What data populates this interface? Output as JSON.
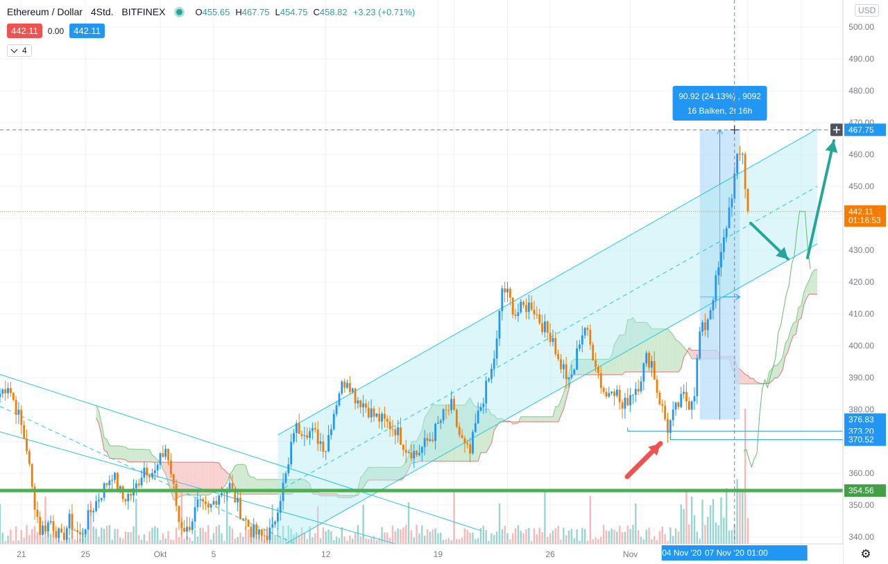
{
  "header": {
    "symbol": "Ethereum / Dollar",
    "interval": "4Std.",
    "exchange": "BITFINEX",
    "o_label": "O",
    "o_value": "455.65",
    "h_label": "H",
    "h_value": "467.75",
    "l_label": "L",
    "l_value": "454.75",
    "c_label": "C",
    "c_value": "458.82",
    "change": "+3.23 (+0.71%)"
  },
  "badges": {
    "bid": "442.11",
    "spread": "0.00",
    "ask": "442.11"
  },
  "indicators_toggle": "4",
  "currency": "USD",
  "measure": {
    "line1": "90.92 (24.13%) , 9092",
    "line2": "16 Balken, 2t 16h"
  },
  "price_tags": [
    {
      "label": "467.75",
      "price": 467.75,
      "color": "#2196f3"
    },
    {
      "label": "442.11",
      "price": 442.11,
      "color": "#f57c00"
    },
    {
      "label": "01:16:53",
      "price": 439.3,
      "color": "#f57c00"
    },
    {
      "label": "376.83",
      "price": 376.83,
      "color": "#2196f3"
    },
    {
      "label": "373.20",
      "price": 373.2,
      "color": "#2196f3"
    },
    {
      "label": "370.52",
      "price": 370.52,
      "color": "#2196f3"
    },
    {
      "label": "354.56",
      "price": 354.56,
      "color": "#43a047"
    }
  ],
  "time_tags": [
    "04 Nov '20",
    "07 Nov '20",
    "01:00"
  ],
  "colors": {
    "up": "#2196f3",
    "down": "#f57c00",
    "channel": "#26c6da",
    "support": "#4caf50",
    "cloud_bear": "#f8c9c9",
    "cloud_bull": "#c8e6c9",
    "arrow_teal": "#26a69a",
    "arrow_red": "#ef5350"
  },
  "chart_data": {
    "type": "candlestick",
    "ylim": [
      338,
      506
    ],
    "y_ticks": [
      340,
      350,
      360,
      370,
      380,
      390,
      400,
      410,
      420,
      430,
      440,
      450,
      460,
      470,
      480,
      490,
      500
    ],
    "y_tick_labels": [
      "340.00",
      "350.00",
      "360.00",
      "370.00",
      "380.00",
      "390.00",
      "400.00",
      "410.00",
      "420.00",
      "430.00",
      "440.00",
      "450.00",
      "460.00",
      "470.00",
      "480.00",
      "490.00",
      "500.00"
    ],
    "x_ticks": [
      {
        "label": "21",
        "bar": 8
      },
      {
        "label": "25",
        "bar": 32
      },
      {
        "label": "Okt",
        "bar": 60
      },
      {
        "label": "5",
        "bar": 80
      },
      {
        "label": "12",
        "bar": 122
      },
      {
        "label": "19",
        "bar": 164
      },
      {
        "label": "26",
        "bar": 206
      },
      {
        "label": "Nov",
        "bar": 236
      }
    ],
    "keypoints": [
      [
        0,
        385
      ],
      [
        3,
        388
      ],
      [
        7,
        378
      ],
      [
        10,
        368
      ],
      [
        12,
        355
      ],
      [
        15,
        342
      ],
      [
        19,
        345
      ],
      [
        23,
        339
      ],
      [
        26,
        345
      ],
      [
        30,
        340
      ],
      [
        34,
        348
      ],
      [
        38,
        354
      ],
      [
        42,
        360
      ],
      [
        46,
        352
      ],
      [
        50,
        354
      ],
      [
        54,
        362
      ],
      [
        58,
        360
      ],
      [
        62,
        368
      ],
      [
        64,
        360
      ],
      [
        67,
        345
      ],
      [
        70,
        342
      ],
      [
        74,
        350
      ],
      [
        78,
        348
      ],
      [
        82,
        354
      ],
      [
        86,
        356
      ],
      [
        90,
        348
      ],
      [
        94,
        342
      ],
      [
        98,
        340
      ],
      [
        102,
        342
      ],
      [
        104,
        350
      ],
      [
        108,
        362
      ],
      [
        110,
        374
      ],
      [
        114,
        374
      ],
      [
        118,
        372
      ],
      [
        122,
        368
      ],
      [
        124,
        376
      ],
      [
        127,
        386
      ],
      [
        130,
        390
      ],
      [
        133,
        384
      ],
      [
        136,
        382
      ],
      [
        140,
        378
      ],
      [
        144,
        376
      ],
      [
        148,
        374
      ],
      [
        152,
        368
      ],
      [
        156,
        366
      ],
      [
        158,
        368
      ],
      [
        162,
        372
      ],
      [
        166,
        378
      ],
      [
        169,
        381
      ],
      [
        172,
        372
      ],
      [
        174,
        368
      ],
      [
        176,
        366
      ],
      [
        178,
        375
      ],
      [
        181,
        384
      ],
      [
        184,
        392
      ],
      [
        186,
        401
      ],
      [
        188,
        418
      ],
      [
        190,
        416
      ],
      [
        193,
        410
      ],
      [
        196,
        412
      ],
      [
        199,
        413
      ],
      [
        202,
        408
      ],
      [
        205,
        404
      ],
      [
        207,
        403
      ],
      [
        209,
        395
      ],
      [
        211,
        393
      ],
      [
        213,
        388
      ],
      [
        215,
        393
      ],
      [
        217,
        402
      ],
      [
        219,
        406
      ],
      [
        221,
        400
      ],
      [
        223,
        395
      ],
      [
        225,
        388
      ],
      [
        227,
        384
      ],
      [
        229,
        388
      ],
      [
        231,
        385
      ],
      [
        233,
        380
      ],
      [
        236,
        385
      ],
      [
        239,
        388
      ],
      [
        242,
        396
      ],
      [
        244,
        395
      ],
      [
        246,
        386
      ],
      [
        248,
        380
      ],
      [
        250,
        374
      ],
      [
        253,
        380
      ],
      [
        256,
        384
      ],
      [
        258,
        382
      ],
      [
        260,
        386
      ],
      [
        262,
        404
      ],
      [
        264,
        406
      ],
      [
        266,
        412
      ],
      [
        268,
        420
      ],
      [
        270,
        428
      ],
      [
        272,
        438
      ],
      [
        274,
        448
      ],
      [
        276,
        458
      ],
      [
        278,
        461
      ],
      [
        279,
        450
      ],
      [
        280,
        442
      ]
    ],
    "last_close": 442.11,
    "channel": {
      "lower_start": [
        104,
        336.5
      ],
      "lower_end": [
        306,
        432
      ],
      "upper_start": [
        104,
        372
      ],
      "upper_end": [
        306,
        468
      ]
    },
    "descending_lines": [
      {
        "from": [
          0,
          391
        ],
        "to": [
          180,
          342
        ]
      },
      {
        "from": [
          0,
          373
        ],
        "to": [
          160,
          335
        ]
      }
    ],
    "support_level": 354.56,
    "measurement": {
      "from_bar": 262,
      "to_bar": 277,
      "low": 376.83,
      "high": 467.75
    },
    "lows": [
      {
        "from_bar": 235,
        "price": 373.2
      },
      {
        "from_bar": 251,
        "price": 370.52
      }
    ]
  }
}
